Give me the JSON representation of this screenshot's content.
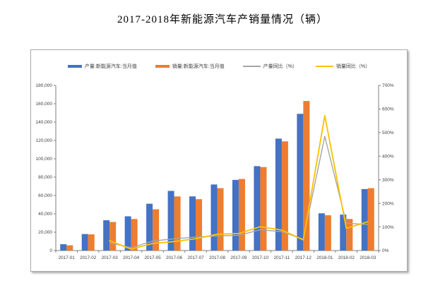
{
  "page": {
    "title": "2017-2018年新能源汽车产销量情况（辆）"
  },
  "chart_data": {
    "type": "bar",
    "subtype": "combo-bar-line",
    "title": "2017-2018年新能源汽车产销量情况（辆）",
    "categories": [
      "2017-01",
      "2017-02",
      "2017-03",
      "2017-04",
      "2017-05",
      "2017-06",
      "2017-07",
      "2017-08",
      "2017-09",
      "2017-10",
      "2017-11",
      "2017-12",
      "2018-01",
      "2018-02",
      "2018-03"
    ],
    "series": [
      {
        "name": "产量:新能源汽车:当月值",
        "type": "bar",
        "axis": "left",
        "color": "#4472C4",
        "values": [
          6889,
          17972,
          33015,
          37306,
          51000,
          65000,
          59000,
          72000,
          77000,
          92000,
          122000,
          149000,
          40569,
          39207,
          67000
        ]
      },
      {
        "name": "销量:新能源汽车:当月值",
        "type": "bar",
        "axis": "left",
        "color": "#ED7D31",
        "values": [
          5682,
          17596,
          31120,
          34361,
          45000,
          59000,
          56000,
          68000,
          78000,
          91000,
          119000,
          163000,
          38470,
          34420,
          68000
        ]
      },
      {
        "name": "产量同比（%）",
        "type": "line",
        "axis": "right",
        "color": "#A6A6A6",
        "values": [
          null,
          null,
          33,
          12,
          40,
          50,
          57,
          62,
          64,
          88,
          80,
          48,
          484,
          116,
          110
        ]
      },
      {
        "name": "销量同比（%）",
        "type": "line",
        "axis": "right",
        "color": "#FFC000",
        "values": [
          null,
          null,
          42,
          6,
          30,
          38,
          50,
          69,
          72,
          101,
          87,
          45,
          572,
          94,
          122
        ]
      }
    ],
    "left_axis": {
      "min": 0,
      "max": 180000,
      "step": 20000,
      "tick_labels": [
        "0",
        "20,000",
        "40,000",
        "60,000",
        "80,000",
        "100,000",
        "120,000",
        "140,000",
        "160,000",
        "180,000"
      ]
    },
    "right_axis": {
      "min": 0,
      "max": 700,
      "step": 100,
      "suffix": "%",
      "tick_labels": [
        "0%",
        "100%",
        "200%",
        "300%",
        "400%",
        "500%",
        "600%",
        "700%"
      ]
    },
    "legend_position": "top",
    "grid": false,
    "axis_color": "#7f7f7f",
    "label_color": "#404040"
  }
}
